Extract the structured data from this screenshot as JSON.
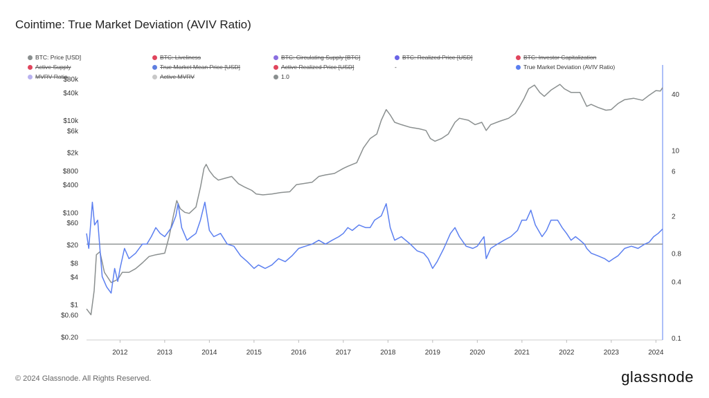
{
  "title": "Cointime: True Market Deviation (AVIV Ratio)",
  "footer": "© 2024 Glassnode. All Rights Reserved.",
  "brand": "glassnode",
  "legend": [
    {
      "label": "BTC: Price [USD]",
      "color": "#8a8f8f",
      "struck": false
    },
    {
      "label": "BTC: Liveliness",
      "color": "#e0455d",
      "struck": true
    },
    {
      "label": "BTC: Circulating Supply [BTC]",
      "color": "#8a6fe0",
      "struck": true
    },
    {
      "label": "BTC: Realized Price [USD]",
      "color": "#6a64e6",
      "struck": true
    },
    {
      "label": "BTC: Investor Capitalization",
      "color": "#e0455d",
      "struck": true
    },
    {
      "label": "Active Supply",
      "color": "#e0455d",
      "struck": true
    },
    {
      "label": "True Market Mean Price [USD]",
      "color": "#5f7fe0",
      "struck": true
    },
    {
      "label": "Active Realized Price [USD]",
      "color": "#e0455d",
      "struck": true
    },
    {
      "label": "-",
      "color": "",
      "struck": false
    },
    {
      "label": "True Market Deviation (AVIV Ratio)",
      "color": "#5b7ff0",
      "struck": false
    },
    {
      "label": "MVRV Ratio",
      "color": "#b9b2f0",
      "struck": true
    },
    {
      "label": "Active MVRV",
      "color": "#c8c8c8",
      "struck": true
    },
    {
      "label": "1.0",
      "color": "#8a8f8f",
      "struck": false
    }
  ],
  "chart_data": {
    "type": "line",
    "x_axis": {
      "ticks": [
        "2012",
        "2013",
        "2014",
        "2015",
        "2016",
        "2017",
        "2018",
        "2019",
        "2020",
        "2021",
        "2022",
        "2023",
        "2024"
      ],
      "range": [
        2011.25,
        2024.15
      ]
    },
    "y_left": {
      "scale": "log",
      "range": [
        0.17,
        85000
      ],
      "ticks": [
        {
          "label": "$80k",
          "value": 80000
        },
        {
          "label": "$40k",
          "value": 40000
        },
        {
          "label": "$10k",
          "value": 10000
        },
        {
          "label": "$6k",
          "value": 6000
        },
        {
          "label": "$2k",
          "value": 2000
        },
        {
          "label": "$800",
          "value": 800
        },
        {
          "label": "$400",
          "value": 400
        },
        {
          "label": "$100",
          "value": 100
        },
        {
          "label": "$60",
          "value": 60
        },
        {
          "label": "$20",
          "value": 20
        },
        {
          "label": "$8",
          "value": 8
        },
        {
          "label": "$4",
          "value": 4
        },
        {
          "label": "$1",
          "value": 1
        },
        {
          "label": "$0.60",
          "value": 0.6
        },
        {
          "label": "$0.20",
          "value": 0.2
        }
      ]
    },
    "y_right": {
      "scale": "log",
      "range": [
        0.095,
        60
      ],
      "ticks": [
        {
          "label": "40",
          "value": 40
        },
        {
          "label": "10",
          "value": 10
        },
        {
          "label": "6",
          "value": 6
        },
        {
          "label": "2",
          "value": 2
        },
        {
          "label": "0.8",
          "value": 0.8
        },
        {
          "label": "0.4",
          "value": 0.4
        },
        {
          "label": "0.1",
          "value": 0.1
        }
      ]
    },
    "reference_line": {
      "name": "1.0",
      "value": 1.0,
      "color": "#8a8f8f"
    },
    "series": [
      {
        "name": "BTC: Price [USD]",
        "axis": "left",
        "color": "#8a8f8f",
        "x": [
          2011.25,
          2011.35,
          2011.42,
          2011.47,
          2011.55,
          2011.65,
          2011.8,
          2011.95,
          2012.05,
          2012.2,
          2012.35,
          2012.5,
          2012.65,
          2012.8,
          2013.0,
          2013.1,
          2013.2,
          2013.27,
          2013.35,
          2013.45,
          2013.55,
          2013.7,
          2013.8,
          2013.88,
          2013.93,
          2014.0,
          2014.1,
          2014.2,
          2014.35,
          2014.5,
          2014.65,
          2014.8,
          2014.95,
          2015.05,
          2015.2,
          2015.4,
          2015.6,
          2015.8,
          2015.95,
          2016.1,
          2016.3,
          2016.45,
          2016.6,
          2016.8,
          2017.0,
          2017.1,
          2017.3,
          2017.45,
          2017.6,
          2017.75,
          2017.85,
          2017.96,
          2018.05,
          2018.15,
          2018.3,
          2018.5,
          2018.7,
          2018.85,
          2018.95,
          2019.05,
          2019.2,
          2019.35,
          2019.5,
          2019.6,
          2019.8,
          2019.95,
          2020.1,
          2020.2,
          2020.3,
          2020.5,
          2020.7,
          2020.85,
          2020.95,
          2021.05,
          2021.15,
          2021.28,
          2021.4,
          2021.5,
          2021.65,
          2021.85,
          2021.95,
          2022.1,
          2022.3,
          2022.45,
          2022.55,
          2022.7,
          2022.88,
          2023.0,
          2023.15,
          2023.3,
          2023.5,
          2023.7,
          2023.85,
          2024.0,
          2024.1,
          2024.15
        ],
        "values": [
          0.8,
          0.6,
          2,
          12,
          14,
          5,
          3,
          3.5,
          5,
          5,
          6,
          8,
          11,
          12,
          13,
          30,
          90,
          180,
          120,
          100,
          95,
          130,
          350,
          900,
          1100,
          800,
          600,
          500,
          550,
          600,
          420,
          350,
          300,
          250,
          240,
          250,
          270,
          280,
          400,
          420,
          450,
          600,
          650,
          700,
          900,
          1000,
          1200,
          2500,
          4000,
          5000,
          10000,
          17000,
          13000,
          9000,
          8000,
          7000,
          6500,
          6000,
          4000,
          3500,
          4000,
          5000,
          9000,
          11000,
          10000,
          8000,
          9000,
          6000,
          8000,
          9500,
          11000,
          14000,
          20000,
          30000,
          48000,
          58000,
          40000,
          33000,
          45000,
          60000,
          48000,
          40000,
          40000,
          20000,
          22000,
          19000,
          16500,
          17000,
          23000,
          28000,
          30000,
          27000,
          35000,
          44000,
          43000,
          51000
        ]
      },
      {
        "name": "True Market Deviation (AVIV Ratio)",
        "axis": "right",
        "color": "#5b7ff0",
        "x": [
          2011.25,
          2011.3,
          2011.38,
          2011.43,
          2011.5,
          2011.55,
          2011.6,
          2011.7,
          2011.8,
          2011.88,
          2011.95,
          2012.0,
          2012.1,
          2012.2,
          2012.35,
          2012.5,
          2012.6,
          2012.7,
          2012.8,
          2012.9,
          2013.0,
          2013.15,
          2013.25,
          2013.3,
          2013.38,
          2013.5,
          2013.6,
          2013.7,
          2013.8,
          2013.9,
          2014.0,
          2014.1,
          2014.25,
          2014.4,
          2014.55,
          2014.7,
          2014.85,
          2015.0,
          2015.1,
          2015.25,
          2015.4,
          2015.55,
          2015.7,
          2015.85,
          2016.0,
          2016.15,
          2016.3,
          2016.45,
          2016.6,
          2016.75,
          2016.9,
          2017.0,
          2017.1,
          2017.2,
          2017.35,
          2017.5,
          2017.6,
          2017.7,
          2017.85,
          2017.96,
          2018.05,
          2018.15,
          2018.3,
          2018.5,
          2018.65,
          2018.8,
          2018.9,
          2019.0,
          2019.1,
          2019.25,
          2019.4,
          2019.5,
          2019.6,
          2019.75,
          2019.9,
          2020.0,
          2020.15,
          2020.2,
          2020.3,
          2020.45,
          2020.6,
          2020.75,
          2020.9,
          2021.0,
          2021.1,
          2021.2,
          2021.3,
          2021.45,
          2021.55,
          2021.65,
          2021.8,
          2021.9,
          2022.0,
          2022.1,
          2022.2,
          2022.3,
          2022.4,
          2022.45,
          2022.55,
          2022.7,
          2022.85,
          2022.95,
          2023.05,
          2023.15,
          2023.3,
          2023.45,
          2023.6,
          2023.75,
          2023.85,
          2023.95,
          2024.05,
          2024.15
        ],
        "values": [
          1.3,
          0.9,
          2.8,
          1.6,
          1.8,
          0.9,
          0.45,
          0.35,
          0.3,
          0.55,
          0.4,
          0.55,
          0.9,
          0.7,
          0.8,
          1.0,
          1.0,
          1.2,
          1.5,
          1.3,
          1.2,
          1.5,
          2.0,
          2.7,
          1.5,
          1.1,
          1.2,
          1.3,
          1.8,
          2.8,
          1.4,
          1.2,
          1.3,
          1.0,
          0.95,
          0.75,
          0.65,
          0.55,
          0.6,
          0.55,
          0.6,
          0.7,
          0.65,
          0.75,
          0.9,
          0.95,
          1.0,
          1.1,
          1.0,
          1.1,
          1.2,
          1.3,
          1.5,
          1.4,
          1.6,
          1.5,
          1.5,
          1.8,
          2.0,
          2.7,
          1.5,
          1.1,
          1.2,
          1.0,
          0.85,
          0.8,
          0.7,
          0.55,
          0.65,
          0.9,
          1.3,
          1.5,
          1.2,
          0.95,
          0.9,
          0.95,
          1.2,
          0.7,
          0.9,
          1.0,
          1.1,
          1.2,
          1.4,
          1.8,
          1.8,
          2.3,
          1.6,
          1.2,
          1.4,
          1.8,
          1.8,
          1.5,
          1.3,
          1.1,
          1.2,
          1.1,
          1.0,
          0.9,
          0.8,
          0.75,
          0.7,
          0.65,
          0.7,
          0.75,
          0.9,
          0.95,
          0.9,
          1.0,
          1.05,
          1.2,
          1.3,
          1.45
        ]
      }
    ]
  }
}
